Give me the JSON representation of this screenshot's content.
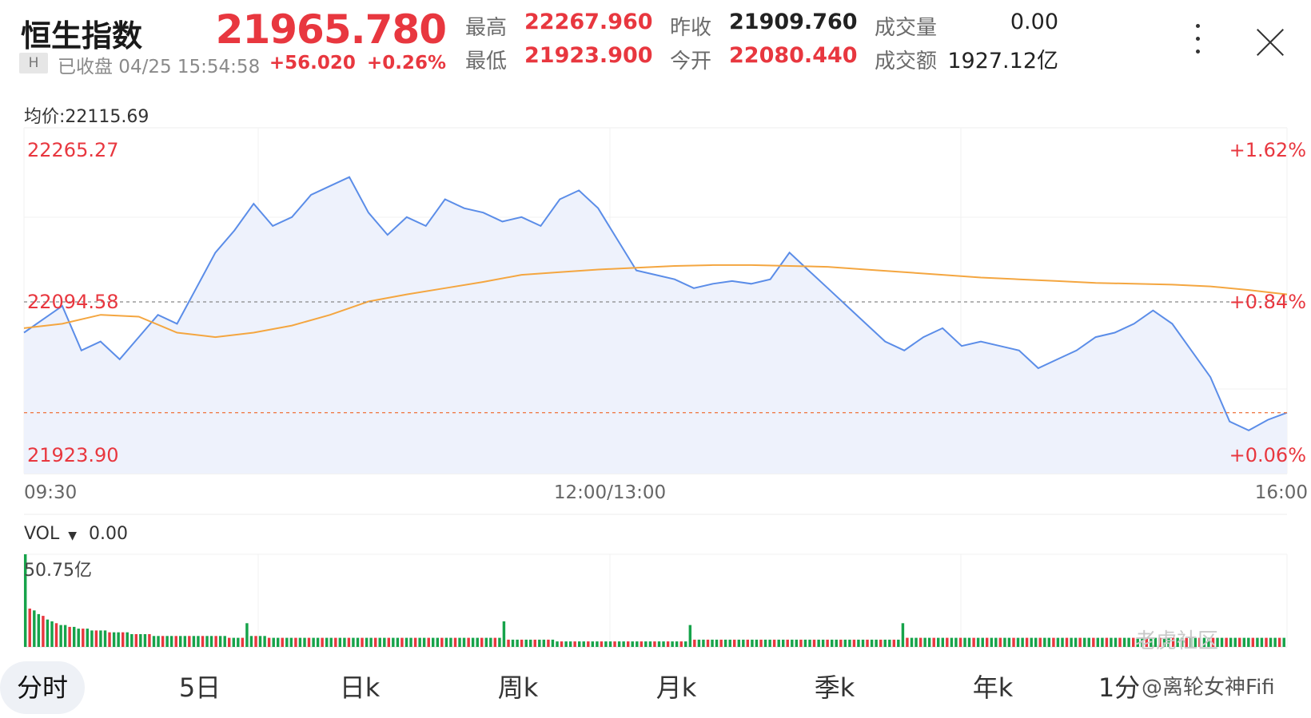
{
  "header": {
    "title": "恒生指数",
    "badge": "H",
    "status": "已收盘 04/25 15:54:58",
    "price": "21965.780",
    "change": "+56.020",
    "change_pct": "+0.26%",
    "stats": [
      {
        "label": "最高",
        "value": "22267.960"
      },
      {
        "label": "最低",
        "value": "21923.900"
      },
      {
        "label": "昨收",
        "value": "21909.760"
      },
      {
        "label": "今开",
        "value": "22080.440"
      },
      {
        "label": "成交量",
        "value": "0.00"
      },
      {
        "label": "成交额",
        "value": "1927.12亿"
      }
    ]
  },
  "colors": {
    "up": "#e8373f",
    "down": "#16a34a",
    "line": "#5b8de8",
    "avg": "#f4a640",
    "fill": "#eef2fc"
  },
  "avg_label": "均价:22115.69",
  "vol_label": "VOL",
  "vol_value": "0.00",
  "vol_max_label": "50.75亿",
  "tabs": [
    "分时",
    "5日",
    "日k",
    "周k",
    "月k",
    "季k",
    "年k",
    "1分"
  ],
  "active_tab": 0,
  "watermark": {
    "brand": "老虎社区",
    "user": "@离轮女神Fifi"
  },
  "chart_data": {
    "type": "line",
    "ylim": [
      21923.9,
      22265.27
    ],
    "y_tick_labels": [
      "22265.27",
      "22094.58",
      "21923.90"
    ],
    "pct_labels": [
      "+1.62%",
      "+0.84%",
      "+0.06%"
    ],
    "x_tick_labels": [
      "09:30",
      "12:00/13:00",
      "16:00"
    ],
    "prev_close": 21909.76,
    "series": [
      {
        "role": "price",
        "x": [
          0,
          5,
          10,
          15,
          20,
          25,
          30,
          35,
          40,
          45,
          50,
          55,
          60,
          65,
          70,
          75,
          80,
          85,
          90,
          95,
          100,
          105,
          110,
          115,
          120,
          125,
          130,
          135,
          140,
          145,
          150,
          155,
          160,
          165,
          170,
          175,
          180,
          185,
          190,
          195,
          200,
          205,
          210,
          215,
          220,
          225,
          230,
          235,
          240,
          245,
          250,
          255,
          260,
          265,
          270,
          275,
          280,
          285,
          290,
          295,
          300,
          305,
          310,
          315,
          320,
          325,
          330
        ],
        "y": [
          22060,
          22075,
          22090,
          22040,
          22050,
          22030,
          22055,
          22080,
          22070,
          22110,
          22150,
          22175,
          22205,
          22180,
          22190,
          22215,
          22225,
          22235,
          22195,
          22170,
          22190,
          22180,
          22210,
          22200,
          22195,
          22185,
          22190,
          22180,
          22210,
          22220,
          22200,
          22165,
          22130,
          22125,
          22120,
          22110,
          22115,
          22118,
          22115,
          22120,
          22150,
          22130,
          22110,
          22090,
          22070,
          22050,
          22040,
          22055,
          22065,
          22045,
          22050,
          22045,
          22040,
          22020,
          22030,
          22040,
          22055,
          22060,
          22070,
          22085,
          22070,
          22040,
          22010,
          21960,
          21950,
          21962,
          21970
        ]
      },
      {
        "role": "avg",
        "x": [
          0,
          10,
          20,
          30,
          40,
          50,
          60,
          70,
          80,
          90,
          100,
          110,
          120,
          130,
          140,
          150,
          160,
          170,
          180,
          190,
          200,
          210,
          220,
          230,
          240,
          250,
          260,
          270,
          280,
          290,
          300,
          310,
          320,
          330
        ],
        "y": [
          22065,
          22070,
          22080,
          22078,
          22060,
          22055,
          22060,
          22068,
          22080,
          22095,
          22103,
          22110,
          22117,
          22125,
          22128,
          22131,
          22133,
          22135,
          22136,
          22136,
          22135,
          22134,
          22131,
          22128,
          22125,
          22122,
          22120,
          22118,
          22116,
          22115,
          22114,
          22112,
          22108,
          22103
        ]
      }
    ],
    "volume": {
      "ylim": [
        0,
        50.75
      ],
      "bars": [
        50.75,
        21,
        20,
        18,
        17,
        15,
        14,
        13,
        12,
        12,
        11,
        11,
        10,
        10,
        10,
        9,
        9,
        9,
        9,
        8,
        8,
        8,
        8,
        8,
        7,
        7,
        7,
        7,
        7,
        6,
        6,
        6,
        6,
        6,
        6,
        6,
        6,
        6,
        6,
        6,
        6,
        6,
        6,
        6,
        6,
        6,
        5,
        5,
        5,
        5,
        13,
        6,
        6,
        6,
        6,
        5,
        5,
        5,
        5,
        5,
        5,
        5,
        5,
        5,
        5,
        5,
        5,
        5,
        5,
        5,
        5,
        5,
        5,
        5,
        5,
        5,
        5,
        5,
        5,
        5,
        5,
        5,
        5,
        5,
        5,
        5,
        5,
        5,
        5,
        5,
        5,
        5,
        5,
        5,
        5,
        5,
        5,
        5,
        5,
        5,
        5,
        5,
        5,
        5,
        5,
        5,
        5,
        5,
        14,
        4,
        4,
        4,
        4,
        4,
        4,
        4,
        4,
        4,
        4,
        4,
        3,
        3,
        3,
        3,
        3,
        3,
        3,
        3,
        3,
        3,
        3,
        3,
        3,
        3,
        3,
        3,
        3,
        3,
        3,
        3,
        3,
        3,
        3,
        3,
        3,
        3,
        3,
        3,
        3,
        3,
        12,
        4,
        4,
        4,
        4,
        4,
        4,
        4,
        4,
        4,
        4,
        4,
        4,
        4,
        4,
        4,
        4,
        4,
        4,
        4,
        4,
        4,
        4,
        4,
        4,
        4,
        4,
        4,
        4,
        4,
        4,
        4,
        4,
        4,
        4,
        4,
        4,
        4,
        4,
        4,
        4,
        4,
        4,
        4,
        4,
        4,
        4,
        4,
        13,
        5,
        5,
        5,
        5,
        5,
        5,
        5,
        5,
        5,
        5,
        5,
        5,
        5,
        5,
        5,
        5,
        5,
        5,
        5,
        5,
        5,
        5,
        5,
        5,
        5,
        5,
        5,
        5,
        5,
        5,
        5,
        5,
        5,
        5,
        5,
        5,
        5,
        5,
        5,
        5,
        5,
        5,
        5,
        5,
        5,
        5,
        5,
        5,
        5,
        5,
        5,
        5,
        5,
        5,
        5,
        5,
        5,
        5,
        5,
        5,
        5,
        5,
        5,
        5,
        5,
        5,
        5,
        5,
        5,
        5,
        5,
        5,
        5,
        5,
        5,
        5,
        5,
        5,
        5,
        5,
        5,
        5,
        5,
        5,
        5,
        5
      ]
    }
  }
}
